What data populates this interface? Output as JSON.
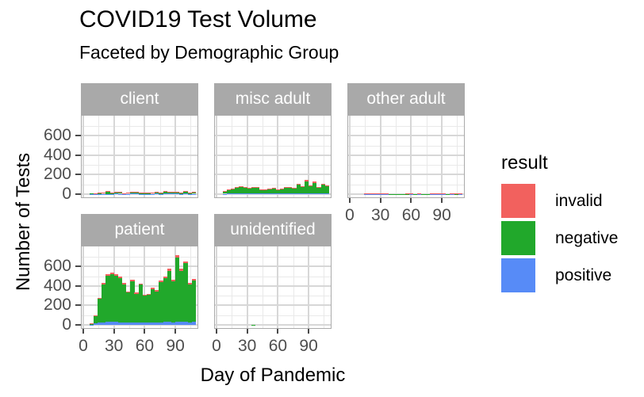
{
  "title": "COVID19 Test Volume",
  "subtitle": "Faceted by Demographic Group",
  "chart_data": {
    "type": "bar",
    "stacked": true,
    "xlabel": "Day of Pandemic",
    "ylabel": "Number of Tests",
    "xticks": [
      0,
      30,
      60,
      90
    ],
    "yticks": [
      0,
      200,
      400,
      600
    ],
    "xlim": [
      0,
      112
    ],
    "ylim": [
      0,
      765
    ],
    "grid": {
      "y_major": [
        0,
        200,
        400,
        600
      ],
      "y_minor": [
        100,
        300,
        500,
        700
      ],
      "x_major": [
        0,
        30,
        60,
        90
      ],
      "x_minor": [
        15,
        45,
        75,
        105
      ]
    },
    "colors": {
      "strip_bg": "#a9a9a9",
      "strip_text": "#ffffff",
      "grid_major": "#d7d7d7",
      "grid_minor": "#e9e9e9",
      "panel_border": "#aaaaaa",
      "axis_text": "#4d4d4d"
    },
    "legend": {
      "title": "result",
      "position": "right",
      "entries": [
        {
          "label": "invalid",
          "color": "#f2615e"
        },
        {
          "label": "negative",
          "color": "#21a82b"
        },
        {
          "label": "positive",
          "color": "#578bf7"
        }
      ]
    },
    "bar_value_format": "[day, positive, negative, invalid] stacked counts per 4-day bin",
    "facets": [
      {
        "label": "client",
        "row": 0,
        "col": 0,
        "x_axis": false,
        "bars": [
          [
            8,
            2,
            4,
            0
          ],
          [
            12,
            3,
            6,
            1
          ],
          [
            16,
            3,
            9,
            2
          ],
          [
            20,
            4,
            10,
            2
          ],
          [
            24,
            4,
            18,
            8
          ],
          [
            28,
            4,
            13,
            3
          ],
          [
            32,
            5,
            16,
            3
          ],
          [
            36,
            4,
            15,
            3
          ],
          [
            40,
            3,
            8,
            1
          ],
          [
            44,
            4,
            10,
            2
          ],
          [
            48,
            5,
            17,
            4
          ],
          [
            52,
            5,
            16,
            3
          ],
          [
            56,
            4,
            13,
            3
          ],
          [
            60,
            4,
            14,
            2
          ],
          [
            64,
            4,
            12,
            2
          ],
          [
            68,
            4,
            9,
            1
          ],
          [
            72,
            5,
            17,
            4
          ],
          [
            76,
            4,
            14,
            2
          ],
          [
            80,
            5,
            21,
            6
          ],
          [
            84,
            5,
            18,
            3
          ],
          [
            88,
            5,
            16,
            3
          ],
          [
            92,
            5,
            16,
            3
          ],
          [
            96,
            4,
            12,
            2
          ],
          [
            100,
            5,
            20,
            5
          ],
          [
            104,
            3,
            9,
            2
          ],
          [
            108,
            4,
            15,
            3
          ]
        ]
      },
      {
        "label": "misc adult",
        "row": 0,
        "col": 1,
        "x_axis": false,
        "bars": [
          [
            8,
            4,
            24,
            2
          ],
          [
            12,
            5,
            36,
            4
          ],
          [
            16,
            6,
            48,
            6
          ],
          [
            20,
            7,
            58,
            7
          ],
          [
            24,
            7,
            64,
            7
          ],
          [
            28,
            6,
            58,
            6
          ],
          [
            32,
            6,
            51,
            5
          ],
          [
            36,
            7,
            62,
            7
          ],
          [
            40,
            6,
            58,
            6
          ],
          [
            44,
            5,
            43,
            4
          ],
          [
            48,
            5,
            39,
            4
          ],
          [
            52,
            5,
            45,
            5
          ],
          [
            56,
            6,
            51,
            5
          ],
          [
            60,
            5,
            41,
            4
          ],
          [
            64,
            5,
            46,
            5
          ],
          [
            68,
            6,
            59,
            7
          ],
          [
            72,
            6,
            62,
            8
          ],
          [
            76,
            5,
            51,
            6
          ],
          [
            80,
            8,
            90,
            10
          ],
          [
            84,
            6,
            66,
            8
          ],
          [
            88,
            10,
            124,
            14
          ],
          [
            92,
            7,
            76,
            9
          ],
          [
            96,
            9,
            107,
            12
          ],
          [
            100,
            6,
            62,
            8
          ],
          [
            104,
            8,
            90,
            10
          ],
          [
            108,
            7,
            71,
            8
          ]
        ]
      },
      {
        "label": "other adult",
        "row": 0,
        "col": 2,
        "x_axis": true,
        "bars": [
          [
            16,
            1,
            6,
            1
          ],
          [
            20,
            2,
            7,
            1
          ],
          [
            24,
            1,
            4,
            1
          ],
          [
            28,
            2,
            7,
            1
          ],
          [
            32,
            1,
            8,
            2
          ],
          [
            36,
            1,
            4,
            1
          ],
          [
            40,
            0,
            2,
            0
          ],
          [
            44,
            0,
            2,
            0
          ],
          [
            48,
            0,
            2,
            0
          ],
          [
            52,
            0,
            2,
            0
          ],
          [
            56,
            1,
            3,
            1
          ],
          [
            60,
            2,
            4,
            1
          ],
          [
            64,
            1,
            3,
            0
          ],
          [
            68,
            1,
            4,
            1
          ],
          [
            72,
            0,
            3,
            0
          ],
          [
            76,
            0,
            2,
            0
          ],
          [
            80,
            1,
            5,
            1
          ],
          [
            84,
            1,
            4,
            1
          ],
          [
            88,
            1,
            5,
            1
          ],
          [
            92,
            1,
            4,
            1
          ],
          [
            96,
            1,
            3,
            0
          ],
          [
            100,
            1,
            5,
            1
          ],
          [
            104,
            1,
            3,
            1
          ],
          [
            108,
            1,
            5,
            1
          ]
        ]
      },
      {
        "label": "patient",
        "row": 1,
        "col": 0,
        "x_axis": true,
        "bars": [
          [
            8,
            3,
            11,
            1
          ],
          [
            12,
            18,
            72,
            5
          ],
          [
            16,
            25,
            245,
            10
          ],
          [
            20,
            28,
            390,
            12
          ],
          [
            24,
            30,
            475,
            15
          ],
          [
            28,
            30,
            490,
            15
          ],
          [
            32,
            30,
            475,
            15
          ],
          [
            36,
            28,
            452,
            15
          ],
          [
            40,
            27,
            390,
            13
          ],
          [
            44,
            25,
            310,
            10
          ],
          [
            48,
            28,
            422,
            15
          ],
          [
            52,
            24,
            296,
            10
          ],
          [
            56,
            27,
            385,
            13
          ],
          [
            60,
            23,
            277,
            10
          ],
          [
            64,
            24,
            286,
            10
          ],
          [
            68,
            26,
            342,
            12
          ],
          [
            72,
            25,
            320,
            10
          ],
          [
            76,
            28,
            412,
            15
          ],
          [
            80,
            29,
            450,
            16
          ],
          [
            84,
            30,
            527,
            18
          ],
          [
            88,
            28,
            422,
            15
          ],
          [
            92,
            34,
            662,
            24
          ],
          [
            96,
            30,
            527,
            18
          ],
          [
            100,
            32,
            600,
            23
          ],
          [
            104,
            27,
            390,
            13
          ],
          [
            108,
            29,
            425,
            16
          ]
        ]
      },
      {
        "label": "unidentified",
        "row": 1,
        "col": 1,
        "x_axis": true,
        "bars": [
          [
            36,
            0,
            2,
            0
          ]
        ]
      }
    ]
  }
}
